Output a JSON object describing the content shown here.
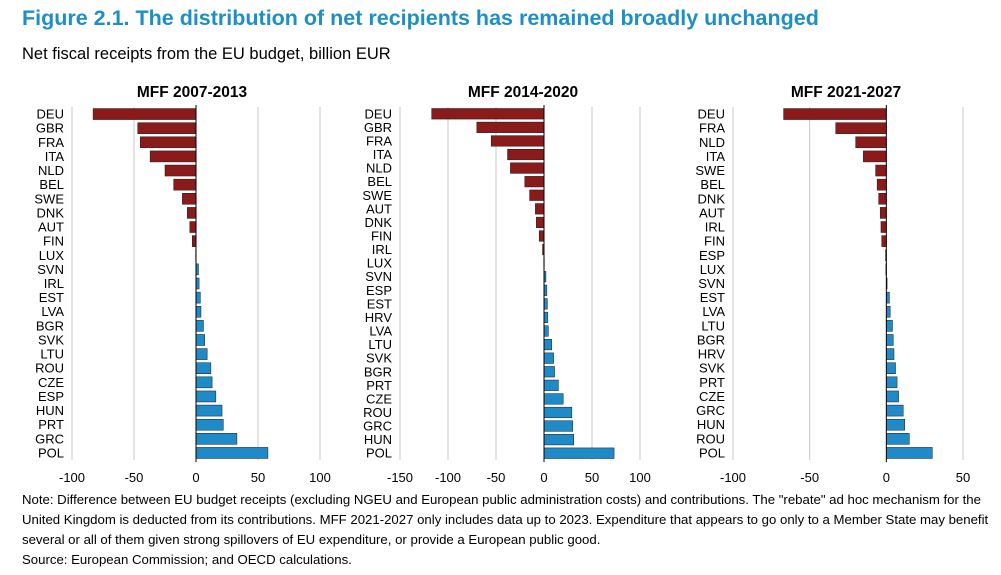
{
  "title": "Figure 2.1. The distribution of net recipients has remained broadly unchanged",
  "subtitle": "Net fiscal receipts from the EU budget, billion EUR",
  "note": "Note: Difference between EU budget receipts (excluding NGEU and European public administration costs) and contributions. The \"rebate\" ad hoc mechanism for the United Kingdom is deducted from its contributions. MFF 2021-2027 only includes data up to 2023. Expenditure that appears to go only to a Member State may benefit several or all of them given strong spillovers of EU expenditure, or provide a European public good.",
  "source": "Source: European Commission; and OECD calculations.",
  "colors": {
    "negative": "#8b1a1a",
    "positive": "#1f8ac8",
    "grid": "#c8c8c8",
    "axis": "#000000"
  },
  "chart_data": [
    {
      "type": "bar",
      "orientation": "horizontal",
      "title": "MFF 2007-2013",
      "xlim": [
        -100,
        100
      ],
      "xticks": [
        -100,
        -50,
        0,
        50,
        100
      ],
      "grid": true,
      "categories": [
        "DEU",
        "GBR",
        "FRA",
        "ITA",
        "NLD",
        "BEL",
        "SWE",
        "DNK",
        "AUT",
        "FIN",
        "LUX",
        "SVN",
        "IRL",
        "EST",
        "LVA",
        "BGR",
        "SVK",
        "LTU",
        "ROU",
        "CZE",
        "ESP",
        "HUN",
        "PRT",
        "GRC",
        "POL"
      ],
      "values": [
        -83,
        -47,
        -45,
        -37,
        -25,
        -18,
        -11,
        -7,
        -5,
        -3,
        -0.3,
        2,
        2.5,
        3.5,
        4,
        6,
        7,
        9,
        12,
        13,
        16,
        21,
        22,
        33,
        58
      ]
    },
    {
      "type": "bar",
      "orientation": "horizontal",
      "title": "MFF 2014-2020",
      "xlim": [
        -150,
        100
      ],
      "xticks": [
        -150,
        -100,
        -50,
        0,
        50,
        100
      ],
      "grid": true,
      "categories": [
        "DEU",
        "GBR",
        "FRA",
        "ITA",
        "NLD",
        "BEL",
        "SWE",
        "AUT",
        "DNK",
        "FIN",
        "IRL",
        "LUX",
        "SVN",
        "ESP",
        "EST",
        "HRV",
        "LVA",
        "LTU",
        "SVK",
        "BGR",
        "PRT",
        "CZE",
        "ROU",
        "GRC",
        "HUN",
        "POL"
      ],
      "values": [
        -117,
        -70,
        -55,
        -38,
        -35,
        -20,
        -15,
        -9,
        -8,
        -5,
        -1.5,
        -0.3,
        2,
        3,
        3.5,
        4,
        4.5,
        8,
        10,
        11,
        15,
        20,
        29,
        30,
        31,
        73
      ]
    },
    {
      "type": "bar",
      "orientation": "horizontal",
      "title": "MFF 2021-2027",
      "xlim": [
        -100,
        50
      ],
      "xticks": [
        -100,
        -50,
        0,
        50
      ],
      "grid": true,
      "categories": [
        "DEU",
        "FRA",
        "NLD",
        "ITA",
        "SWE",
        "BEL",
        "DNK",
        "AUT",
        "IRL",
        "FIN",
        "ESP",
        "LUX",
        "SVN",
        "EST",
        "LVA",
        "LTU",
        "BGR",
        "HRV",
        "SVK",
        "PRT",
        "CZE",
        "GRC",
        "HUN",
        "ROU",
        "POL"
      ],
      "values": [
        -67,
        -33,
        -20,
        -15,
        -7,
        -6,
        -5,
        -4,
        -3.5,
        -3,
        -0.5,
        -0.3,
        0.5,
        2,
        2.5,
        4,
        4.5,
        5,
        6,
        7,
        8,
        11,
        12,
        15,
        30
      ]
    }
  ]
}
